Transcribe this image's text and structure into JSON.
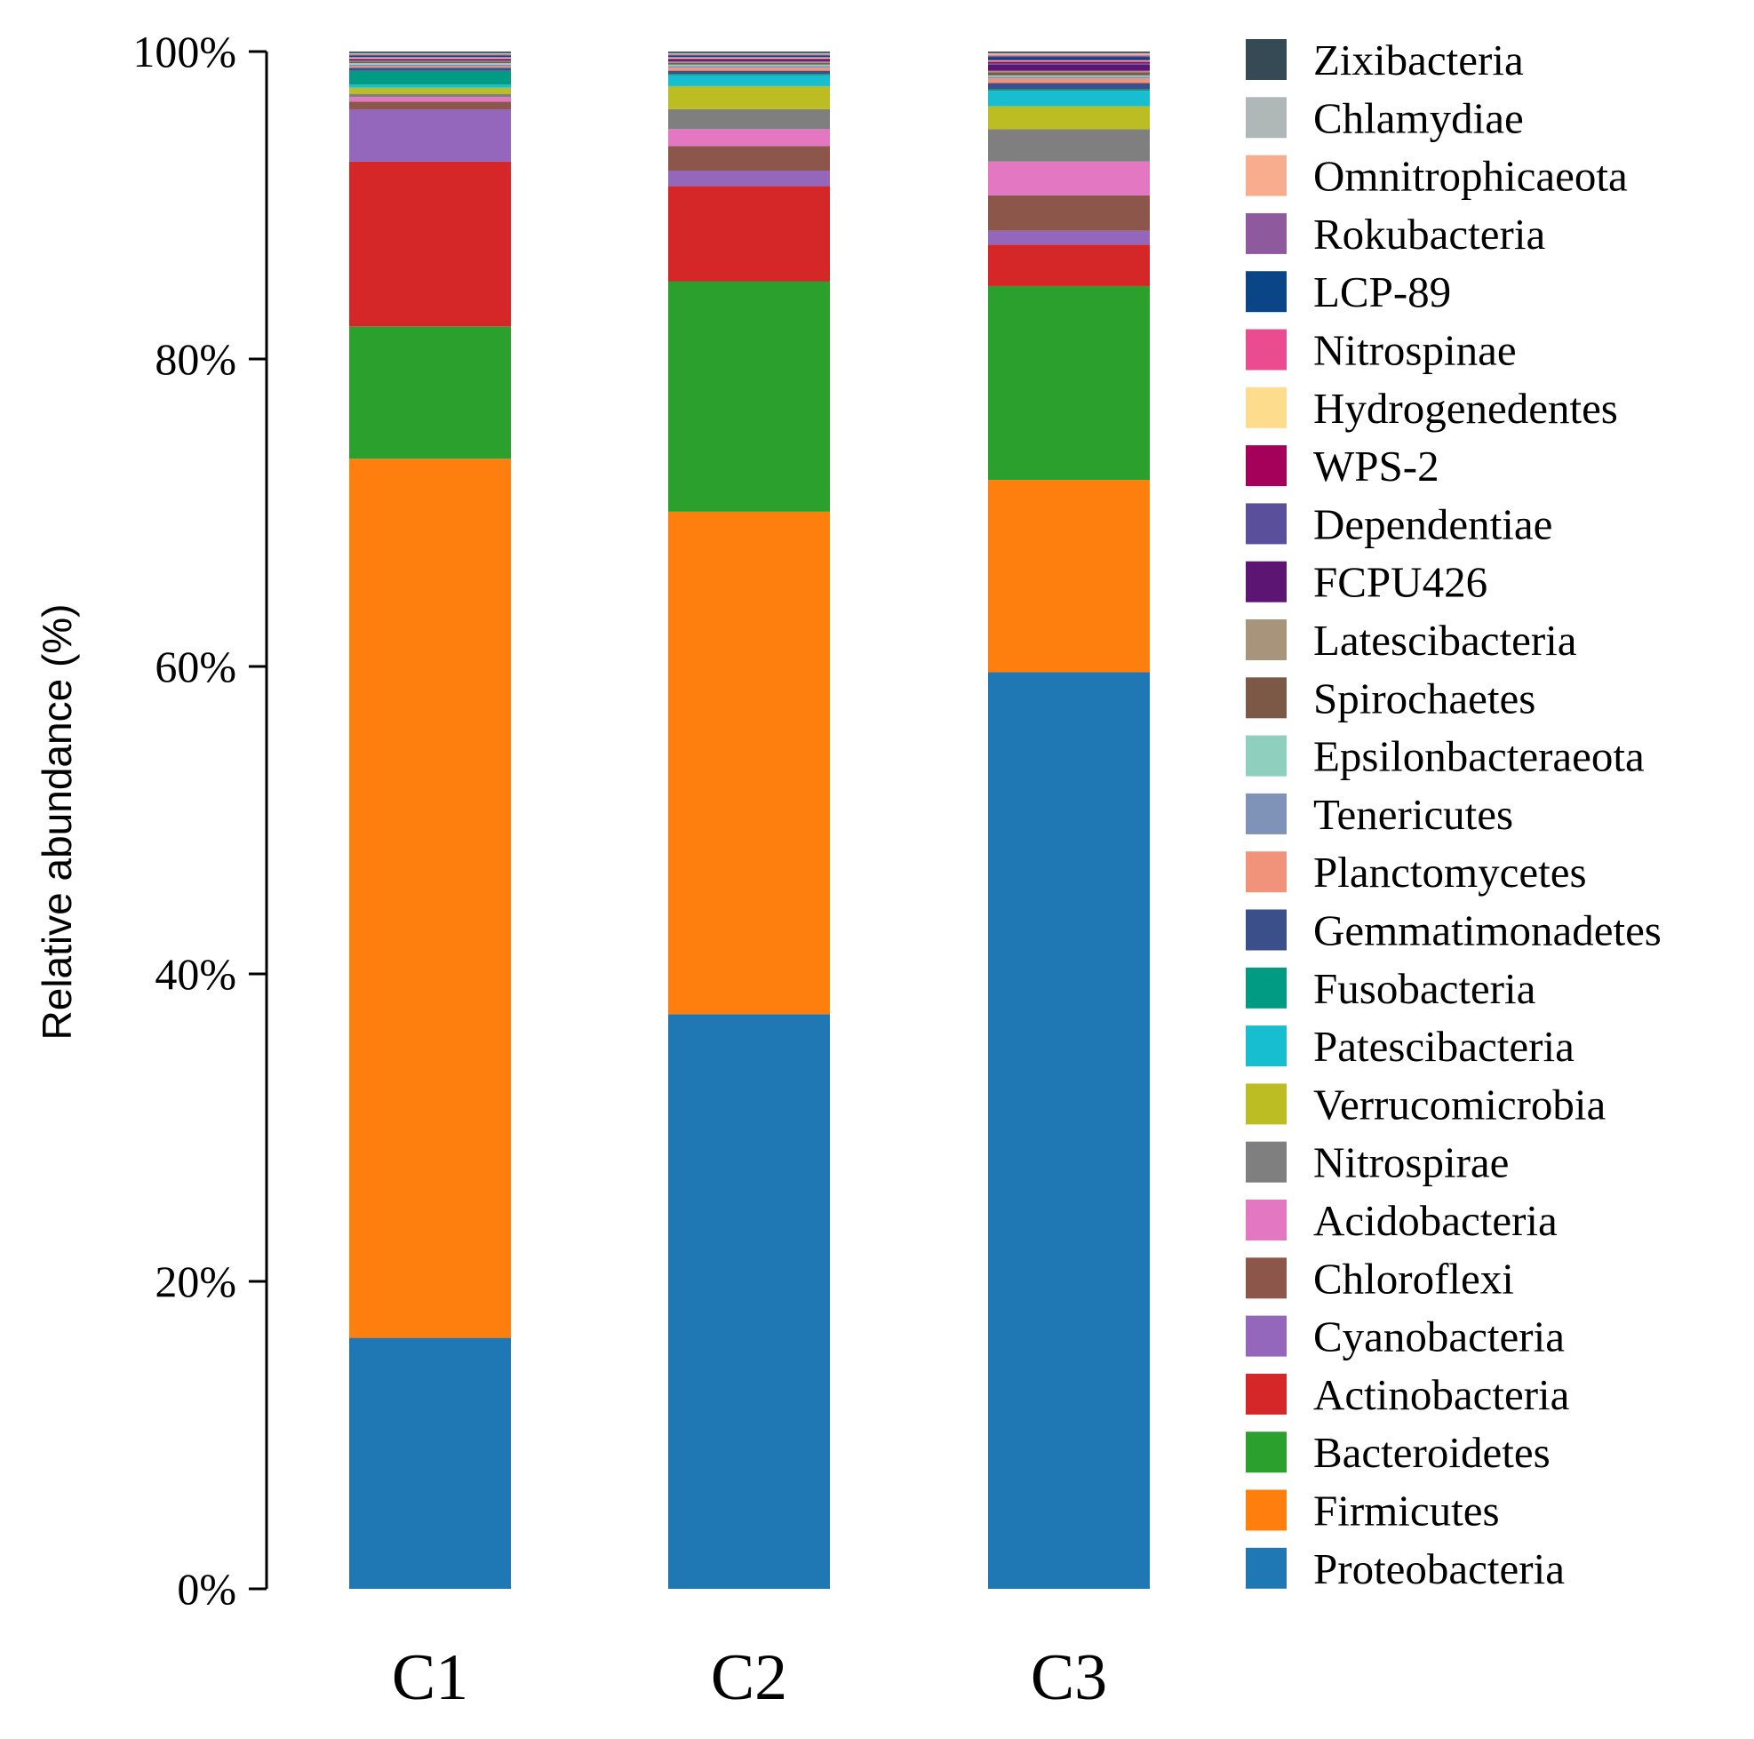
{
  "chart_data": {
    "type": "bar",
    "stacked": true,
    "title": "",
    "xlabel": "",
    "ylabel": "Relative abundance (%)",
    "ylim": [
      0,
      100
    ],
    "yticks": [
      "0%",
      "20%",
      "40%",
      "60%",
      "80%",
      "100%"
    ],
    "categories": [
      "C1",
      "C2",
      "C3"
    ],
    "legend_position": "right",
    "series": [
      {
        "name": "Proteobacteria",
        "color": "#1f77b4",
        "values": [
          16.3,
          37.4,
          59.6
        ]
      },
      {
        "name": "Firmicutes",
        "color": "#ff7f0e",
        "values": [
          57.1,
          32.7,
          12.5
        ]
      },
      {
        "name": "Bacteroidetes",
        "color": "#2ca02c",
        "values": [
          8.6,
          15.0,
          12.6
        ]
      },
      {
        "name": "Actinobacteria",
        "color": "#d62728",
        "values": [
          10.7,
          6.2,
          2.7
        ]
      },
      {
        "name": "Cyanobacteria",
        "color": "#9467bd",
        "values": [
          3.4,
          1.0,
          0.9
        ]
      },
      {
        "name": "Chloroflexi",
        "color": "#8c564b",
        "values": [
          0.5,
          1.6,
          2.3
        ]
      },
      {
        "name": "Acidobacteria",
        "color": "#e377c2",
        "values": [
          0.3,
          1.1,
          2.2
        ]
      },
      {
        "name": "Nitrospirae",
        "color": "#7f7f7f",
        "values": [
          0.2,
          1.3,
          2.1
        ]
      },
      {
        "name": "Verrucomicrobia",
        "color": "#bcbd22",
        "values": [
          0.4,
          1.5,
          1.5
        ]
      },
      {
        "name": "Patescibacteria",
        "color": "#17becf",
        "values": [
          0.2,
          0.7,
          1.0
        ]
      },
      {
        "name": "Fusobacteria",
        "color": "#009b82",
        "values": [
          0.9,
          0.1,
          0.1
        ]
      },
      {
        "name": "Gemmatimonadetes",
        "color": "#3b4f8a",
        "values": [
          0.2,
          0.2,
          0.4
        ]
      },
      {
        "name": "Planctomycetes",
        "color": "#f0937a",
        "values": [
          0.1,
          0.2,
          0.3
        ]
      },
      {
        "name": "Tenericutes",
        "color": "#7f93b9",
        "values": [
          0.1,
          0.1,
          0.1
        ]
      },
      {
        "name": "Epsilonbacteraeota",
        "color": "#8fcfbd",
        "values": [
          0.1,
          0.1,
          0.1
        ]
      },
      {
        "name": "Spirochaetes",
        "color": "#7b5946",
        "values": [
          0.1,
          0.1,
          0.2
        ]
      },
      {
        "name": "Latescibacteria",
        "color": "#a8947a",
        "values": [
          0.05,
          0.1,
          0.1
        ]
      },
      {
        "name": "FCPU426",
        "color": "#5c1573",
        "values": [
          0.05,
          0.1,
          0.4
        ]
      },
      {
        "name": "Dependentiae",
        "color": "#5a4f9a",
        "values": [
          0.05,
          0.05,
          0.1
        ]
      },
      {
        "name": "WPS-2",
        "color": "#a5005a",
        "values": [
          0.05,
          0.05,
          0.1
        ]
      },
      {
        "name": "Hydrogenedentes",
        "color": "#fddc8e",
        "values": [
          0.05,
          0.05,
          0.05
        ]
      },
      {
        "name": "Nitrospinae",
        "color": "#ea4c8f",
        "values": [
          0.05,
          0.05,
          0.05
        ]
      },
      {
        "name": "LCP-89",
        "color": "#0a4687",
        "values": [
          0.1,
          0.1,
          0.2
        ]
      },
      {
        "name": "Rokubacteria",
        "color": "#8e5a9d",
        "values": [
          0.05,
          0.05,
          0.1
        ]
      },
      {
        "name": "Omnitrophicaeota",
        "color": "#f9ad8f",
        "values": [
          0.05,
          0.05,
          0.1
        ]
      },
      {
        "name": "Chlamydiae",
        "color": "#b0b7b7",
        "values": [
          0.05,
          0.05,
          0.05
        ]
      },
      {
        "name": "Zixibacteria",
        "color": "#354a54",
        "values": [
          0.1,
          0.1,
          0.1
        ]
      }
    ]
  }
}
